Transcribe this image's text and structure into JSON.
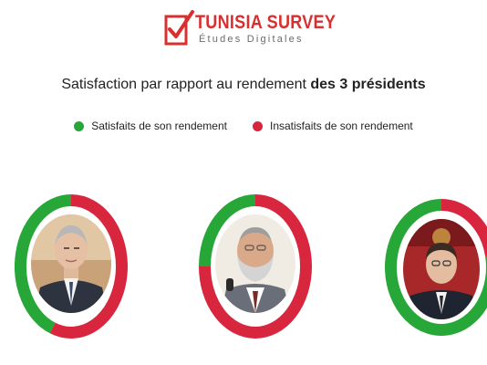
{
  "logo": {
    "name": "TUNISIA SURVEY",
    "tagline": "Études Digitales",
    "icon": "checkmark-box-icon",
    "brand_color": "#d9302f"
  },
  "title": {
    "prefix": "Satisfaction par rapport au rendement ",
    "bold": "des 3 présidents"
  },
  "chart_data": {
    "type": "pie",
    "title": "Satisfaction par rapport au rendement des 3 présidents",
    "legend_placement": "top",
    "legend": [
      {
        "label": "Satisfaits de son rendement",
        "color": "#27a737"
      },
      {
        "label": "Insatisfaits de son rendement",
        "color": "#d7263d"
      }
    ],
    "donuts": [
      {
        "satisfied_pct": 44,
        "dissatisfied_pct": 56
      },
      {
        "satisfied_pct": 25,
        "dissatisfied_pct": 75
      },
      {
        "satisfied_pct": 78,
        "dissatisfied_pct": 22
      }
    ]
  }
}
